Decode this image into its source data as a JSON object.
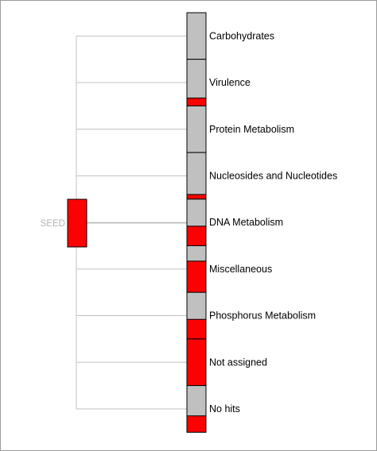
{
  "root": {
    "label": "SEED"
  },
  "colors": {
    "hit": "#ff0000",
    "base": "#c0c0c0",
    "connector": "#c0c0c0",
    "outline": "#000000"
  },
  "categories": [
    {
      "label": "Carbohydrates",
      "hit_fraction": 0.0
    },
    {
      "label": "Virulence",
      "hit_fraction": 0.17
    },
    {
      "label": "Protein Metabolism",
      "hit_fraction": 0.0
    },
    {
      "label": "Nucleosides and Nucleotides",
      "hit_fraction": 0.1
    },
    {
      "label": "DNA Metabolism",
      "hit_fraction": 0.42
    },
    {
      "label": "Miscellaneous",
      "hit_fraction": 0.67
    },
    {
      "label": "Phosphorus Metabolism",
      "hit_fraction": 0.42
    },
    {
      "label": "Not assigned",
      "hit_fraction": 1.0
    },
    {
      "label": "No hits",
      "hit_fraction": 0.35
    }
  ]
}
